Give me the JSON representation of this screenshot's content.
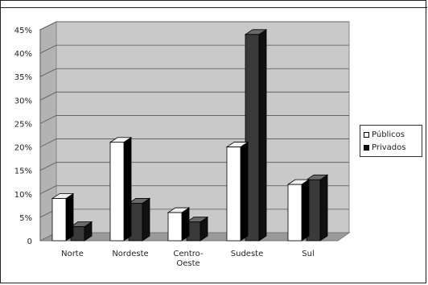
{
  "chart_data": {
    "type": "bar",
    "categories": [
      "Norte",
      "Nordeste",
      "Centro-\nOeste",
      "Sudeste",
      "Sul"
    ],
    "series": [
      {
        "name": "Públicos",
        "values": [
          9,
          21,
          6,
          20,
          12
        ],
        "color": "#ffffff"
      },
      {
        "name": "Privados",
        "values": [
          3,
          8,
          4,
          44,
          13
        ],
        "color": "#444444"
      }
    ],
    "yticks": [
      "0",
      "5%",
      "10%",
      "15%",
      "20%",
      "25%",
      "30%",
      "35%",
      "40%",
      "45%"
    ],
    "ylim": [
      0,
      45
    ],
    "grid": true,
    "legend": "right",
    "wall_color": "#c9c9c9",
    "floor_color": "#9a9a9a"
  }
}
